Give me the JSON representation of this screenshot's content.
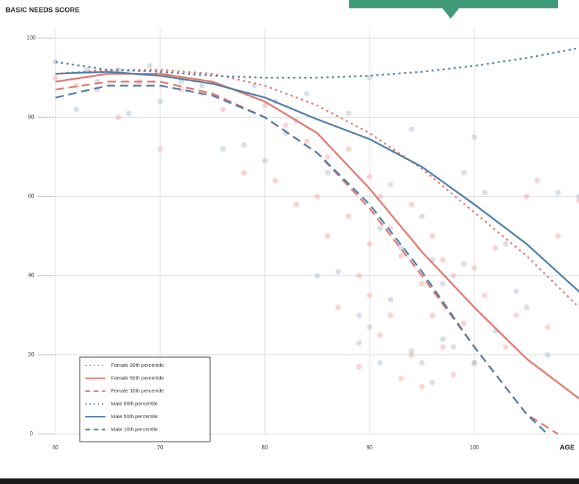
{
  "chart_data": {
    "type": "scatter-lines",
    "title": "BASIC NEEDS SCORE",
    "xlabel": "AGE",
    "xlim": [
      60,
      110
    ],
    "ylim": [
      0,
      100
    ],
    "xticks": [
      60,
      70,
      80,
      90,
      100
    ],
    "yticks": [
      0,
      20,
      40,
      60,
      80,
      100
    ],
    "grid": true,
    "legend": "lower left",
    "points": [
      {
        "color": "#eaa29c",
        "x": [
          60,
          62,
          64,
          66,
          68,
          70,
          72,
          74,
          76,
          78,
          80,
          81,
          82,
          83,
          84,
          85,
          86,
          86,
          87,
          88,
          88,
          89,
          89,
          90,
          90,
          90,
          91,
          91,
          92,
          92,
          93,
          93,
          94,
          94,
          95,
          95,
          96,
          96,
          97,
          97,
          98,
          98,
          99,
          100,
          100,
          101,
          102,
          103,
          104,
          105,
          106,
          107,
          108,
          110
        ],
        "values": [
          90,
          88,
          87,
          80,
          89,
          72,
          87,
          86,
          82,
          66,
          83,
          64,
          78,
          58,
          74,
          60,
          70,
          50,
          32,
          55,
          72,
          17,
          40,
          65,
          35,
          48,
          60,
          25,
          52,
          30,
          14,
          45,
          20,
          58,
          12,
          38,
          30,
          50,
          22,
          44,
          15,
          40,
          28,
          18,
          42,
          35,
          47,
          22,
          30,
          60,
          64,
          27,
          50,
          59
        ]
      },
      {
        "color": "#a6b8cf",
        "x": [
          60,
          62,
          63,
          64,
          66,
          67,
          69,
          70,
          72,
          74,
          76,
          78,
          79,
          80,
          81,
          82,
          83,
          84,
          85,
          86,
          87,
          88,
          89,
          89,
          90,
          90,
          91,
          91,
          92,
          92,
          93,
          94,
          94,
          95,
          95,
          96,
          96,
          97,
          97,
          98,
          99,
          99,
          100,
          100,
          101,
          102,
          103,
          104,
          105,
          107,
          108,
          110
        ],
        "values": [
          94,
          82,
          92,
          89,
          92,
          81,
          93,
          84,
          89,
          88,
          72,
          73,
          88,
          69,
          84,
          76,
          79,
          86,
          40,
          66,
          41,
          81,
          30,
          23,
          90,
          27,
          52,
          18,
          63,
          34,
          47,
          21,
          77,
          18,
          55,
          13,
          44,
          38,
          24,
          22,
          66,
          43,
          75,
          18,
          61,
          26,
          48,
          36,
          32,
          20,
          61,
          60
        ]
      }
    ],
    "series": [
      {
        "name": "Female 90th percentile",
        "color": "#e0736b",
        "style": "dotted",
        "x": [
          60,
          65,
          70,
          75,
          80,
          85,
          90,
          95,
          100,
          105,
          110
        ],
        "values": [
          91,
          92,
          92,
          91,
          88,
          83,
          76,
          67,
          56,
          45,
          32
        ]
      },
      {
        "name": "Female 50th percentile",
        "color": "#e0736b",
        "style": "solid",
        "x": [
          60,
          65,
          70,
          75,
          80,
          85,
          90,
          95,
          100,
          105,
          110
        ],
        "values": [
          89,
          91,
          91,
          89,
          84,
          76,
          62,
          46,
          32,
          19,
          9
        ]
      },
      {
        "name": "Female 10th percentile",
        "color": "#e0736b",
        "style": "dashed",
        "x": [
          60,
          65,
          70,
          75,
          80,
          85,
          90,
          95,
          100,
          105,
          108
        ],
        "values": [
          87,
          89,
          89,
          86,
          80,
          71,
          57,
          40,
          22,
          5,
          0
        ]
      },
      {
        "name": "Male 90th percentile",
        "color": "#4d7aa3",
        "style": "dotted",
        "x": [
          60,
          65,
          70,
          75,
          80,
          85,
          90,
          95,
          100,
          105,
          110
        ],
        "values": [
          94,
          92,
          91.5,
          90.5,
          90,
          90,
          90.5,
          91.5,
          93,
          95,
          97.5
        ]
      },
      {
        "name": "Male 50th percentile",
        "color": "#4d7aa3",
        "style": "solid",
        "x": [
          60,
          65,
          70,
          75,
          80,
          85,
          90,
          95,
          100,
          105,
          110
        ],
        "values": [
          91,
          91.5,
          90.5,
          88.5,
          85,
          79.5,
          74.5,
          67.5,
          58,
          48,
          36
        ]
      },
      {
        "name": "Male 10th percentile",
        "color": "#4d7aa3",
        "style": "dashed",
        "x": [
          60,
          65,
          70,
          75,
          80,
          85,
          90,
          95,
          100,
          105,
          107
        ],
        "values": [
          85,
          88,
          88,
          85.5,
          80,
          71,
          58,
          41,
          22,
          5,
          0
        ]
      }
    ]
  }
}
